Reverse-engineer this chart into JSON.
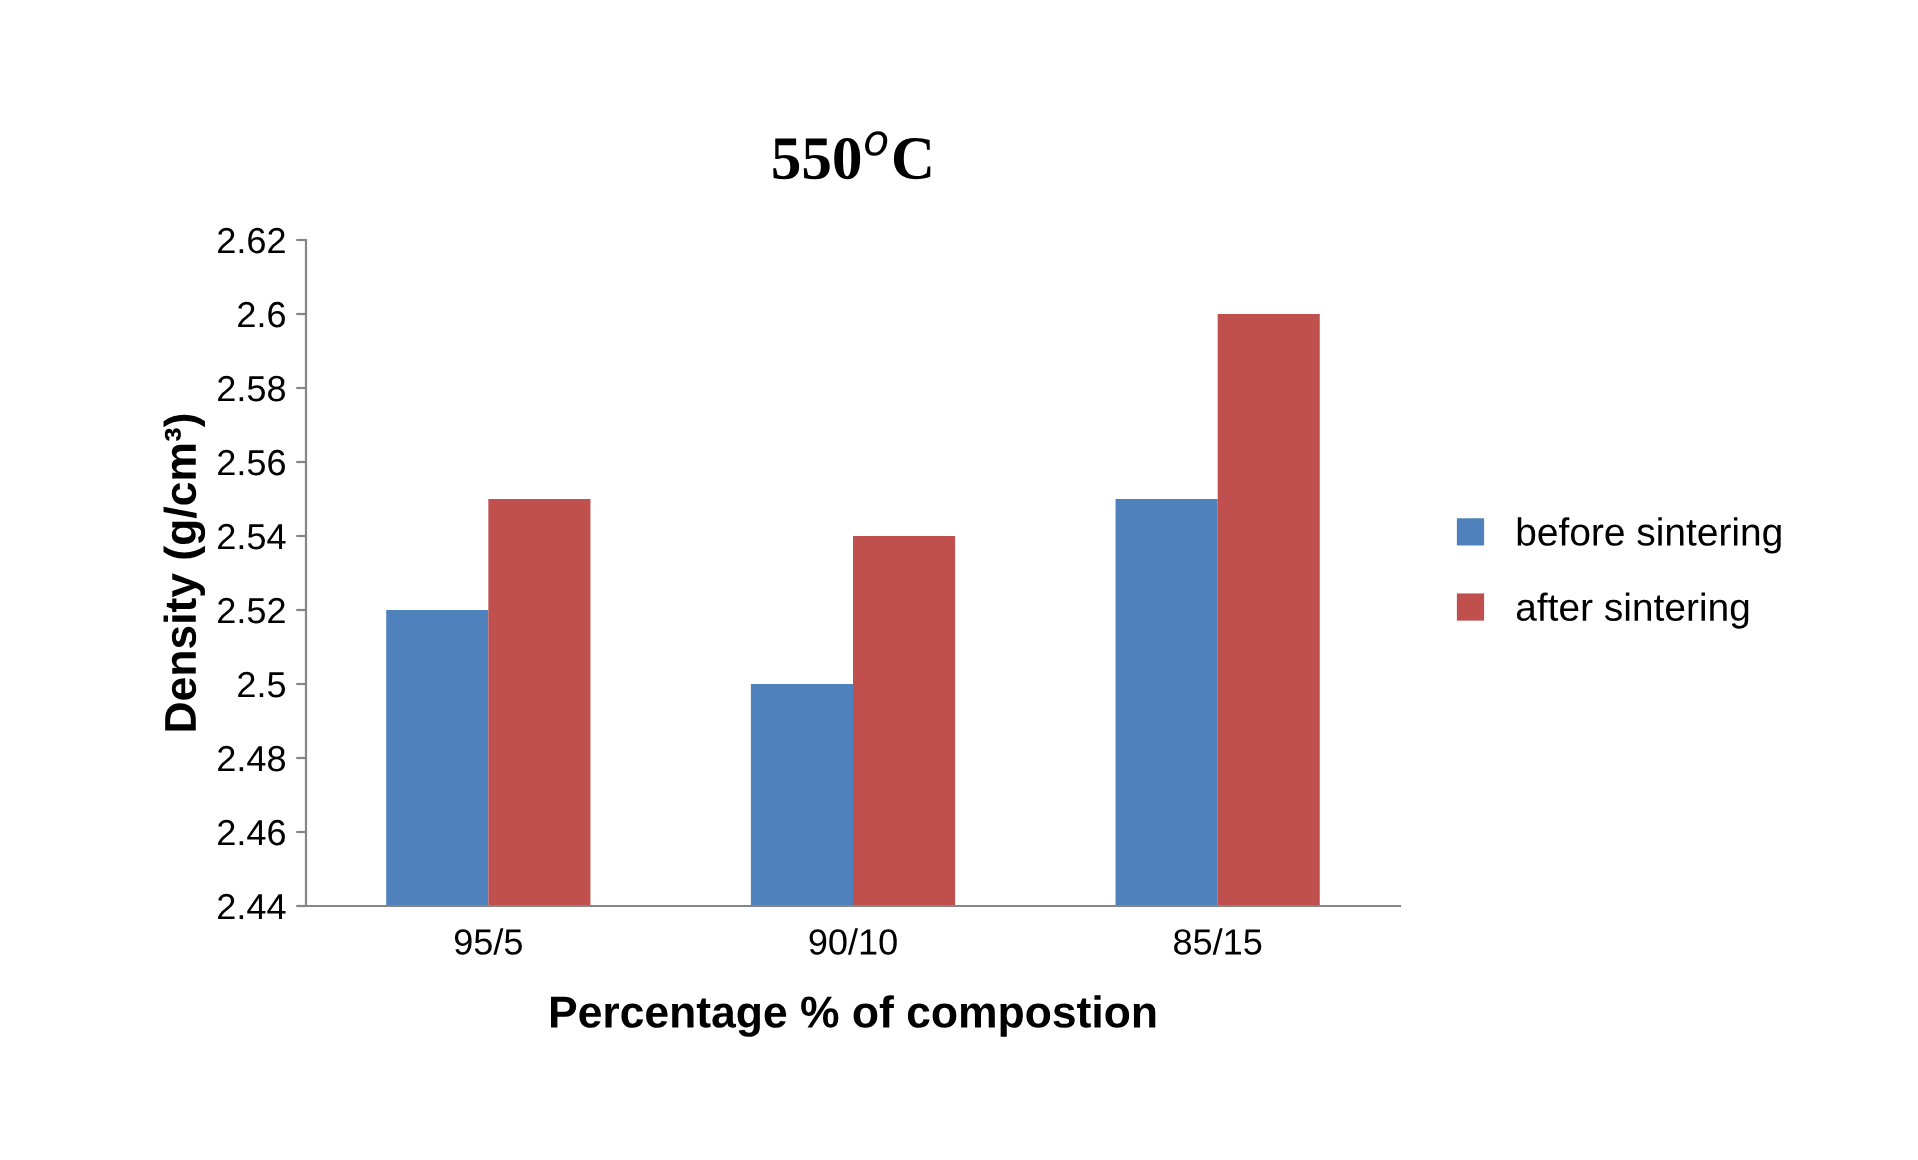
{
  "chart_data": {
    "type": "bar",
    "title": "550$^{o}$C",
    "xlabel": "Percentage % of compostion",
    "ylabel": "Density (g/cm³)",
    "categories": [
      "95/5",
      "90/10",
      "85/15"
    ],
    "series": [
      {
        "name": "before sintering",
        "color": "#4f81bd",
        "values": [
          2.52,
          2.5,
          2.55
        ]
      },
      {
        "name": "after sintering",
        "color": "#c0504d",
        "values": [
          2.55,
          2.54,
          2.6
        ]
      }
    ],
    "ylim": [
      2.44,
      2.62
    ],
    "yticks": [
      2.44,
      2.46,
      2.48,
      2.5,
      2.52,
      2.54,
      2.56,
      2.58,
      2.6,
      2.62
    ],
    "grid": false,
    "legend": "right"
  }
}
